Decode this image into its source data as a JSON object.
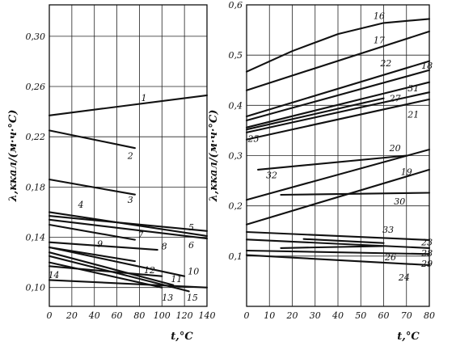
{
  "chart_data": [
    {
      "type": "line",
      "xlabel": "t,°C",
      "ylabel": "λ,ккал/(м·ч·°С)",
      "xlim": [
        0,
        140
      ],
      "ylim": [
        0.085,
        0.325
      ],
      "x_ticks": [
        0,
        20,
        40,
        60,
        80,
        100,
        120,
        140
      ],
      "x_tick_labels": [
        "0",
        "20",
        "40",
        "60",
        "80",
        "100",
        "120",
        "140"
      ],
      "y_ticks": [
        0.1,
        0.14,
        0.18,
        0.22,
        0.26,
        0.3
      ],
      "y_tick_labels": [
        "0,10",
        "0,14",
        "0,18",
        "0,22",
        "0,26",
        "0,30"
      ],
      "grid": true,
      "series": [
        {
          "name": "1",
          "x": [
            0,
            140
          ],
          "y": [
            0.237,
            0.253
          ]
        },
        {
          "name": "2",
          "x": [
            0,
            76
          ],
          "y": [
            0.225,
            0.211
          ]
        },
        {
          "name": "3",
          "x": [
            0,
            76
          ],
          "y": [
            0.186,
            0.174
          ]
        },
        {
          "name": "4",
          "x": [
            0,
            140
          ],
          "y": [
            0.16,
            0.141
          ]
        },
        {
          "name": "5",
          "x": [
            0,
            140
          ],
          "y": [
            0.157,
            0.145
          ]
        },
        {
          "name": "6",
          "x": [
            0,
            140
          ],
          "y": [
            0.154,
            0.139
          ]
        },
        {
          "name": "7",
          "x": [
            0,
            76
          ],
          "y": [
            0.15,
            0.138
          ]
        },
        {
          "name": "8",
          "x": [
            0,
            96
          ],
          "y": [
            0.136,
            0.13
          ]
        },
        {
          "name": "9",
          "x": [
            0,
            76
          ],
          "y": [
            0.132,
            0.121
          ]
        },
        {
          "name": "10",
          "x": [
            0,
            120
          ],
          "y": [
            0.132,
            0.109
          ]
        },
        {
          "name": "11",
          "x": [
            0,
            110
          ],
          "y": [
            0.128,
            0.102
          ]
        },
        {
          "name": "12",
          "x": [
            0,
            100
          ],
          "y": [
            0.117,
            0.109
          ]
        },
        {
          "name": "13",
          "x": [
            0,
            100
          ],
          "y": [
            0.12,
            0.1
          ]
        },
        {
          "name": "14",
          "x": [
            0,
            140
          ],
          "y": [
            0.106,
            0.1
          ]
        },
        {
          "name": "15",
          "x": [
            0,
            124
          ],
          "y": [
            0.125,
            0.097
          ]
        }
      ],
      "labels": [
        {
          "text": "1",
          "x": 84,
          "y": 0.251
        },
        {
          "text": "2",
          "x": 72,
          "y": 0.205
        },
        {
          "text": "3",
          "x": 72,
          "y": 0.17
        },
        {
          "text": "4",
          "x": 28,
          "y": 0.166
        },
        {
          "text": "5",
          "x": 126,
          "y": 0.148
        },
        {
          "text": "6",
          "x": 126,
          "y": 0.134
        },
        {
          "text": "7",
          "x": 81,
          "y": 0.142
        },
        {
          "text": "8",
          "x": 102,
          "y": 0.133
        },
        {
          "text": "9",
          "x": 45,
          "y": 0.135
        },
        {
          "text": "10",
          "x": 128,
          "y": 0.113
        },
        {
          "text": "11",
          "x": 113,
          "y": 0.107
        },
        {
          "text": "12",
          "x": 89,
          "y": 0.114
        },
        {
          "text": "13",
          "x": 105,
          "y": 0.092
        },
        {
          "text": "14",
          "x": 4,
          "y": 0.11
        },
        {
          "text": "15",
          "x": 127,
          "y": 0.092
        }
      ]
    },
    {
      "type": "line",
      "xlabel": "t,°C",
      "ylabel": "λ,ккал/(м·ч·°С)",
      "xlim": [
        0,
        80
      ],
      "ylim": [
        0.0,
        0.6
      ],
      "x_ticks": [
        0,
        10,
        20,
        30,
        40,
        50,
        60,
        70,
        80
      ],
      "x_tick_labels": [
        "0",
        "10",
        "20",
        "30",
        "40",
        "50",
        "60",
        "70",
        "80"
      ],
      "y_ticks": [
        0.1,
        0.2,
        0.3,
        0.4,
        0.5,
        0.6
      ],
      "y_tick_labels": [
        "0,1",
        "0,2",
        "0,3",
        "0,4",
        "0,5",
        "0,6"
      ],
      "grid": true,
      "series": [
        {
          "name": "16",
          "x": [
            0,
            20,
            40,
            60,
            80
          ],
          "y": [
            0.467,
            0.508,
            0.542,
            0.564,
            0.572
          ]
        },
        {
          "name": "17",
          "x": [
            0,
            80
          ],
          "y": [
            0.43,
            0.547
          ]
        },
        {
          "name": "18",
          "x": [
            0,
            80
          ],
          "y": [
            0.378,
            0.488
          ]
        },
        {
          "name": "22",
          "x": [
            0,
            80
          ],
          "y": [
            0.37,
            0.47
          ]
        },
        {
          "name": "31",
          "x": [
            0,
            80
          ],
          "y": [
            0.356,
            0.446
          ]
        },
        {
          "name": "27",
          "x": [
            0,
            80
          ],
          "y": [
            0.346,
            0.426
          ]
        },
        {
          "name": "21",
          "x": [
            0,
            80
          ],
          "y": [
            0.332,
            0.412
          ]
        },
        {
          "name": "25",
          "x": [
            0,
            60
          ],
          "y": [
            0.352,
            0.414
          ]
        },
        {
          "name": "20",
          "x": [
            0,
            80
          ],
          "y": [
            0.212,
            0.312
          ]
        },
        {
          "name": "32",
          "x": [
            5,
            70
          ],
          "y": [
            0.272,
            0.3
          ]
        },
        {
          "name": "19",
          "x": [
            0,
            80
          ],
          "y": [
            0.163,
            0.272
          ]
        },
        {
          "name": "30",
          "x": [
            15,
            80
          ],
          "y": [
            0.222,
            0.226
          ]
        },
        {
          "name": "23",
          "x": [
            0,
            80
          ],
          "y": [
            0.148,
            0.132
          ]
        },
        {
          "name": "33",
          "x": [
            25,
            60
          ],
          "y": [
            0.134,
            0.126
          ]
        },
        {
          "name": "28",
          "x": [
            0,
            80
          ],
          "y": [
            0.133,
            0.116
          ]
        },
        {
          "name": "26",
          "x": [
            15,
            60
          ],
          "y": [
            0.116,
            0.12
          ]
        },
        {
          "name": "29",
          "x": [
            0,
            80
          ],
          "y": [
            0.111,
            0.104
          ]
        },
        {
          "name": "24",
          "x": [
            0,
            80
          ],
          "y": [
            0.102,
            0.082
          ]
        }
      ],
      "labels": [
        {
          "text": "16",
          "x": 58,
          "y": 0.578
        },
        {
          "text": "17",
          "x": 58,
          "y": 0.53
        },
        {
          "text": "18",
          "x": 79,
          "y": 0.479
        },
        {
          "text": "22",
          "x": 61,
          "y": 0.484
        },
        {
          "text": "31",
          "x": 73,
          "y": 0.434
        },
        {
          "text": "27",
          "x": 65,
          "y": 0.414
        },
        {
          "text": "21",
          "x": 73,
          "y": 0.382
        },
        {
          "text": "25",
          "x": 3,
          "y": 0.334
        },
        {
          "text": "20",
          "x": 65,
          "y": 0.315
        },
        {
          "text": "32",
          "x": 11,
          "y": 0.261
        },
        {
          "text": "19",
          "x": 70,
          "y": 0.268
        },
        {
          "text": "30",
          "x": 67,
          "y": 0.209
        },
        {
          "text": "23",
          "x": 79,
          "y": 0.128
        },
        {
          "text": "33",
          "x": 62,
          "y": 0.153
        },
        {
          "text": "28",
          "x": 79,
          "y": 0.106
        },
        {
          "text": "26",
          "x": 63,
          "y": 0.098
        },
        {
          "text": "29",
          "x": 79,
          "y": 0.085
        },
        {
          "text": "24",
          "x": 69,
          "y": 0.058
        }
      ]
    }
  ]
}
